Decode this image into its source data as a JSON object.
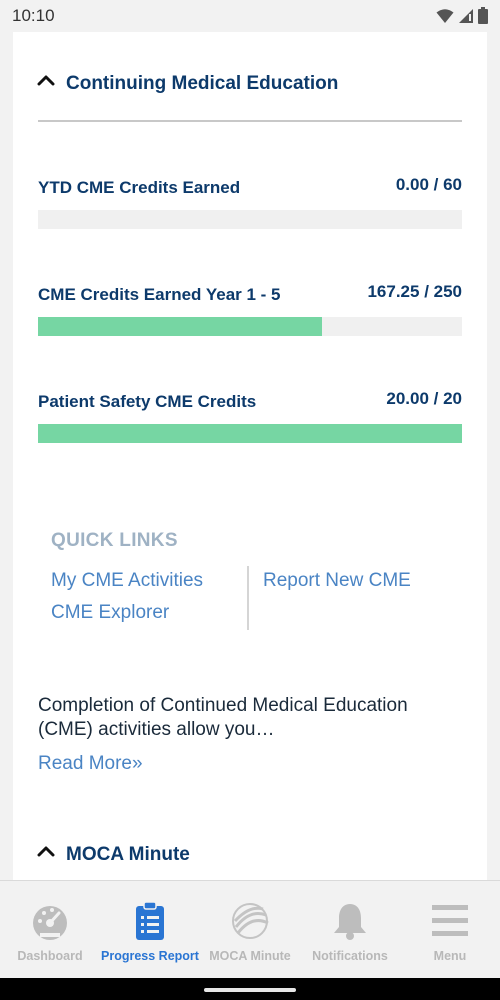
{
  "status_bar": {
    "time": "10:10",
    "icons": [
      "wifi-icon",
      "signal-icon",
      "battery-icon"
    ]
  },
  "cme_section": {
    "title": "Continuing Medical Education",
    "expanded": true,
    "metrics": [
      {
        "label": "YTD CME Credits Earned",
        "value": "0.00 / 60",
        "progress": 0.0
      },
      {
        "label": "CME Credits Earned Year 1 - 5",
        "value": "167.25 / 250",
        "progress": 0.669
      },
      {
        "label": "Patient Safety CME Credits",
        "value": "20.00 / 20",
        "progress": 1.0
      }
    ]
  },
  "quick_links": {
    "title": "QUICK LINKS",
    "links": [
      "My CME Activities",
      "CME Explorer",
      "Report New CME"
    ]
  },
  "description": {
    "text": "Completion of Continued Medical Education (CME) activities allow you…",
    "read_more": "Read More»"
  },
  "moca_section": {
    "title": "MOCA Minute",
    "expanded": true
  },
  "bottom_nav": {
    "items": [
      {
        "label": "Dashboard",
        "icon": "speedometer-icon",
        "active": false
      },
      {
        "label": "Progress Report",
        "icon": "clipboard-icon",
        "active": true
      },
      {
        "label": "MOCA Minute",
        "icon": "moca-logo-icon",
        "active": false
      },
      {
        "label": "Notifications",
        "icon": "bell-icon",
        "active": false
      },
      {
        "label": "Menu",
        "icon": "hamburger-icon",
        "active": false
      }
    ]
  },
  "colors": {
    "primary_text": "#0d3a6b",
    "progress_fill": "#76d6a3",
    "progress_track": "#f0f0f0",
    "link": "#4a84c4",
    "nav_active": "#2a75d3",
    "nav_inactive": "#b8b8b8"
  }
}
